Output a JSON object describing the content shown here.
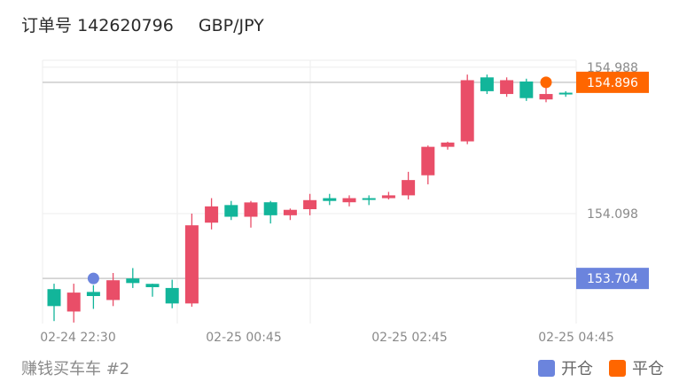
{
  "header": {
    "order_label": "订单号",
    "order_number": "142620796",
    "pair": "GBP/JPY"
  },
  "footer": {
    "strategy_name": "赚钱买车车 #2"
  },
  "legend": {
    "open_label": "开仓",
    "close_label": "平仓",
    "open_color": "#6b84dd",
    "close_color": "#ff6600"
  },
  "chart_data": {
    "type": "candlestick",
    "x_tick_labels": [
      "02-24 22:30",
      "02-25 00:45",
      "02-25 02:45",
      "02-25 04:45"
    ],
    "y_tick_labels": [
      "154.988",
      "154.098"
    ],
    "ylim": [
      153.43,
      155.03
    ],
    "up_color": "#12b59a",
    "down_color": "#e94e68",
    "open_price_label": "153.704",
    "close_price_label": "154.896",
    "open_price": 153.704,
    "close_price": 154.896,
    "open_marker_candle": 2,
    "close_marker_candle": 25,
    "candles": [
      {
        "o": 153.536,
        "h": 153.672,
        "l": 153.445,
        "c": 153.639
      },
      {
        "o": 153.618,
        "h": 153.672,
        "l": 153.436,
        "c": 153.503
      },
      {
        "o": 153.597,
        "h": 153.663,
        "l": 153.519,
        "c": 153.622
      },
      {
        "o": 153.693,
        "h": 153.737,
        "l": 153.536,
        "c": 153.573
      },
      {
        "o": 153.676,
        "h": 153.767,
        "l": 153.646,
        "c": 153.704
      },
      {
        "o": 153.651,
        "h": 153.672,
        "l": 153.593,
        "c": 153.671
      },
      {
        "o": 153.552,
        "h": 153.696,
        "l": 153.523,
        "c": 153.646
      },
      {
        "o": 154.027,
        "h": 154.098,
        "l": 153.532,
        "c": 153.552
      },
      {
        "o": 154.142,
        "h": 154.192,
        "l": 154.002,
        "c": 154.043
      },
      {
        "o": 154.079,
        "h": 154.175,
        "l": 154.059,
        "c": 154.15
      },
      {
        "o": 154.166,
        "h": 154.175,
        "l": 154.013,
        "c": 154.079
      },
      {
        "o": 154.088,
        "h": 154.175,
        "l": 154.038,
        "c": 154.167
      },
      {
        "o": 154.121,
        "h": 154.129,
        "l": 154.059,
        "c": 154.088
      },
      {
        "o": 154.18,
        "h": 154.218,
        "l": 154.088,
        "c": 154.125
      },
      {
        "o": 154.175,
        "h": 154.218,
        "l": 154.15,
        "c": 154.192
      },
      {
        "o": 154.192,
        "h": 154.209,
        "l": 154.142,
        "c": 154.167
      },
      {
        "o": 154.184,
        "h": 154.209,
        "l": 154.15,
        "c": 154.192
      },
      {
        "o": 154.209,
        "h": 154.23,
        "l": 154.184,
        "c": 154.192
      },
      {
        "o": 154.302,
        "h": 154.352,
        "l": 154.184,
        "c": 154.209
      },
      {
        "o": 154.504,
        "h": 154.512,
        "l": 154.276,
        "c": 154.331
      },
      {
        "o": 154.53,
        "h": 154.535,
        "l": 154.487,
        "c": 154.504
      },
      {
        "o": 154.909,
        "h": 154.943,
        "l": 154.52,
        "c": 154.537
      },
      {
        "o": 154.842,
        "h": 154.943,
        "l": 154.825,
        "c": 154.926
      },
      {
        "o": 154.909,
        "h": 154.926,
        "l": 154.808,
        "c": 154.825
      },
      {
        "o": 154.8,
        "h": 154.918,
        "l": 154.783,
        "c": 154.901
      },
      {
        "o": 154.825,
        "h": 154.918,
        "l": 154.775,
        "c": 154.792
      },
      {
        "o": 154.825,
        "h": 154.842,
        "l": 154.808,
        "c": 154.833
      }
    ]
  }
}
